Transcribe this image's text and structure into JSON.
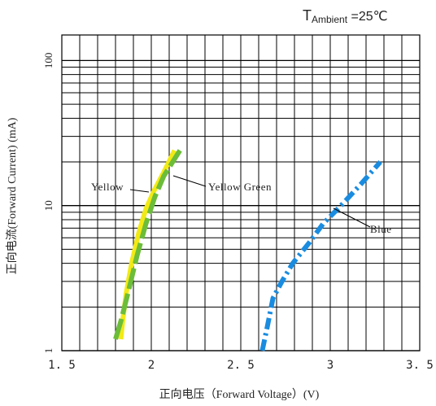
{
  "chart_data": {
    "type": "line",
    "title": "",
    "ambient_label": {
      "prefix": "T",
      "subscript": "Ambient",
      "suffix": " =25℃"
    },
    "xlabel": "正向电压（Forward  Voltage）(V)",
    "ylabel": "正向电流(Forward  Current) (mA)",
    "x_ticks": [
      {
        "value": 1.5,
        "label": "1. 5"
      },
      {
        "value": 2.0,
        "label": "2"
      },
      {
        "value": 2.5,
        "label": "2. 5"
      },
      {
        "value": 3.0,
        "label": "3"
      },
      {
        "value": 3.5,
        "label": "3. 5"
      }
    ],
    "y_ticks": [
      {
        "value": 1,
        "label": "1"
      },
      {
        "value": 10,
        "label": "10"
      },
      {
        "value": 100,
        "label": "100"
      }
    ],
    "xlim": [
      1.5,
      3.5
    ],
    "ylim": [
      1,
      150
    ],
    "y_scale": "log",
    "grid": true,
    "series": [
      {
        "name": "Yellow",
        "color": "#f2ea16",
        "dash": "solid",
        "points": [
          [
            1.83,
            1.2
          ],
          [
            1.84,
            1.6
          ],
          [
            1.86,
            2.5
          ],
          [
            1.89,
            4.0
          ],
          [
            1.93,
            6.5
          ],
          [
            1.97,
            9.5
          ],
          [
            2.02,
            13
          ],
          [
            2.07,
            17
          ],
          [
            2.13,
            24
          ]
        ]
      },
      {
        "name": "Yellow Green",
        "color": "#6cbd3a",
        "dash": "long-dash",
        "points": [
          [
            1.8,
            1.2
          ],
          [
            1.83,
            1.6
          ],
          [
            1.87,
            2.5
          ],
          [
            1.92,
            4.5
          ],
          [
            1.97,
            7.5
          ],
          [
            2.02,
            11.5
          ],
          [
            2.07,
            16
          ],
          [
            2.16,
            24
          ]
        ]
      },
      {
        "name": "Blue",
        "color": "#1a8ce0",
        "dash": "dash-dot",
        "points": [
          [
            2.62,
            1.0
          ],
          [
            2.65,
            1.5
          ],
          [
            2.68,
            2.3
          ],
          [
            2.73,
            3.0
          ],
          [
            2.79,
            4.0
          ],
          [
            2.88,
            5.5
          ],
          [
            2.96,
            7.5
          ],
          [
            3.06,
            10
          ],
          [
            3.17,
            14
          ],
          [
            3.28,
            20
          ]
        ]
      }
    ],
    "annotations": [
      {
        "text": "Yellow",
        "series": "Yellow"
      },
      {
        "text": "Yellow Green",
        "series": "Yellow Green"
      },
      {
        "text": "Blue",
        "series": "Blue"
      }
    ]
  }
}
